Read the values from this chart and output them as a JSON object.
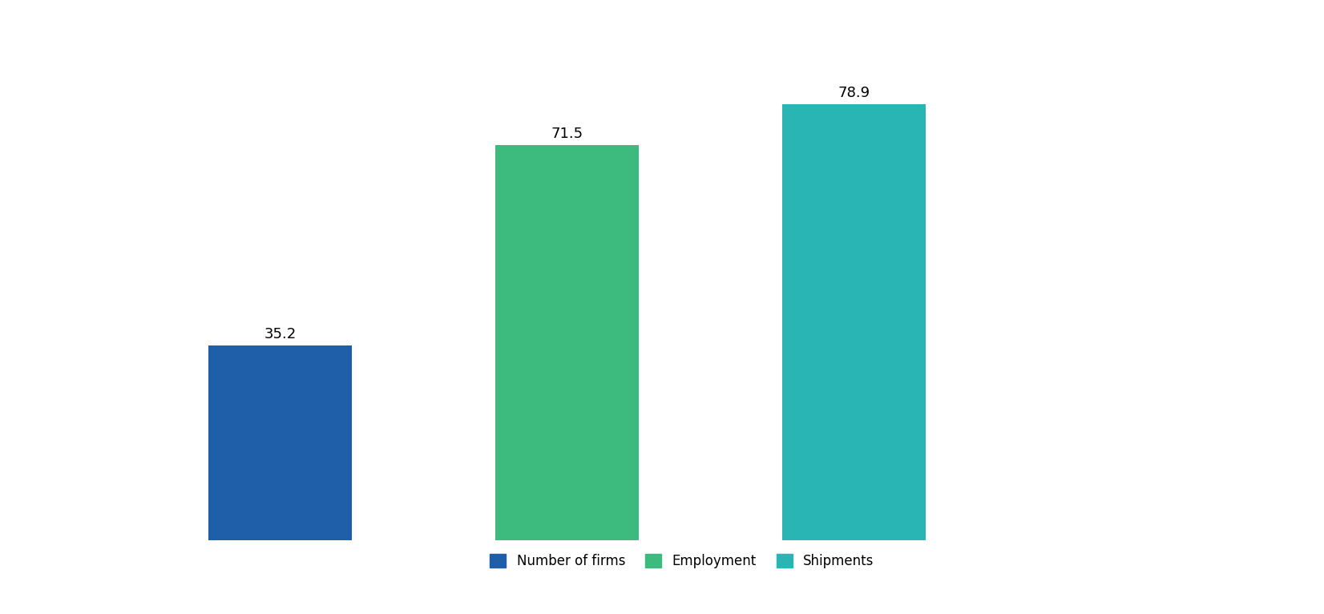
{
  "categories": [
    "Number of firms",
    "Employment",
    "Shipments"
  ],
  "values": [
    35.2,
    71.5,
    78.9
  ],
  "bar_colors": [
    "#1f5ea8",
    "#3dba7e",
    "#2ab5b5"
  ],
  "label_fontsize": 13,
  "legend_fontsize": 12,
  "background_color": "#ffffff",
  "ylim": [
    0,
    90
  ],
  "x_positions": [
    1,
    2,
    3
  ],
  "bar_width": 0.5,
  "xlim": [
    0.3,
    4.5
  ]
}
